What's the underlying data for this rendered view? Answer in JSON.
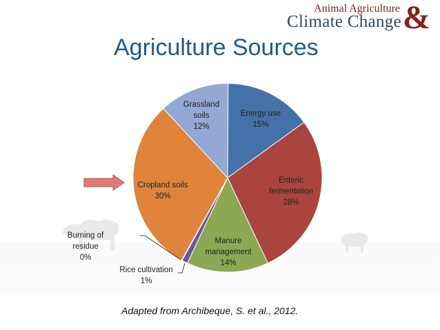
{
  "logo": {
    "line1": "Animal Agriculture",
    "line2": "Climate Change",
    "ampersand": "&"
  },
  "title": "Agriculture Sources",
  "caption": "Adapted from Archibeque, S. et al., 2012.",
  "chart_data": {
    "type": "pie",
    "title": "Agriculture Sources",
    "slices": [
      {
        "label": "Energy use",
        "value": 15,
        "display": "15%",
        "color": "#4472a8"
      },
      {
        "label": "Enteric fermentation",
        "value": 28,
        "display": "28%",
        "color": "#a9443f"
      },
      {
        "label": "Manure management",
        "value": 14,
        "display": "14%",
        "color": "#8ca854"
      },
      {
        "label": "Rice cultivation",
        "value": 1,
        "display": "1%",
        "color": "#6b5796"
      },
      {
        "label": "Burning of residue",
        "value": 0,
        "display": "0%",
        "color": "#3ea1b8"
      },
      {
        "label": "Cropland soils",
        "value": 30,
        "display": "30%",
        "color": "#e0843c"
      },
      {
        "label": "Grassland soils",
        "value": 12,
        "display": "12%",
        "color": "#93a8d2"
      }
    ],
    "labels": [
      {
        "lines": [
          "Energy use",
          "15%"
        ]
      },
      {
        "lines": [
          "Enteric",
          "fermentation",
          "28%"
        ]
      },
      {
        "lines": [
          "Manure",
          "management",
          "14%"
        ]
      },
      {
        "lines": [
          "Rice cultivation",
          "1%"
        ]
      },
      {
        "lines": [
          "Burning of",
          "residue",
          "0%"
        ]
      },
      {
        "lines": [
          "Cropland soils",
          "30%"
        ]
      },
      {
        "lines": [
          "Grassland",
          "soils",
          "12%"
        ]
      }
    ],
    "legend": "none"
  },
  "arrow_color": "#e07a78"
}
